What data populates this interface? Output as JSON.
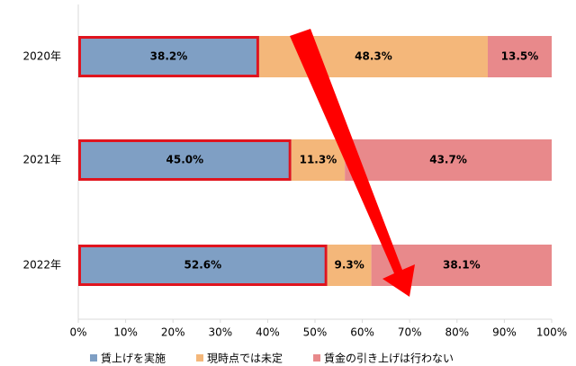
{
  "chart_data": {
    "type": "bar",
    "horizontal": true,
    "stacked": true,
    "categories": [
      "2020年",
      "2021年",
      "2022年"
    ],
    "series": [
      {
        "name": "賃上げを実施",
        "color": "#7f9fc4",
        "values": [
          38.2,
          45.0,
          52.6
        ],
        "value_labels": [
          "38.2%",
          "45.0%",
          "52.6%"
        ]
      },
      {
        "name": "現時点では未定",
        "color": "#f4b77a",
        "values": [
          48.3,
          11.3,
          9.3
        ],
        "value_labels": [
          "48.3%",
          "11.3%",
          "9.3%"
        ]
      },
      {
        "name": "賃金の引き上げは行わない",
        "color": "#e8898b",
        "values": [
          13.5,
          43.7,
          38.1
        ],
        "value_labels": [
          "13.5%",
          "43.7%",
          "38.1%"
        ]
      }
    ],
    "xlim": [
      0,
      100
    ],
    "xticks": [
      {
        "value": 0,
        "label": "0%"
      },
      {
        "value": 10,
        "label": "10%"
      },
      {
        "value": 20,
        "label": "20%"
      },
      {
        "value": 30,
        "label": "30%"
      },
      {
        "value": 40,
        "label": "40%"
      },
      {
        "value": 50,
        "label": "50%"
      },
      {
        "value": 60,
        "label": "60%"
      },
      {
        "value": 70,
        "label": "70%"
      },
      {
        "value": 80,
        "label": "80%"
      },
      {
        "value": 90,
        "label": "90%"
      },
      {
        "value": 100,
        "label": "100%"
      }
    ],
    "grid": false
  }
}
